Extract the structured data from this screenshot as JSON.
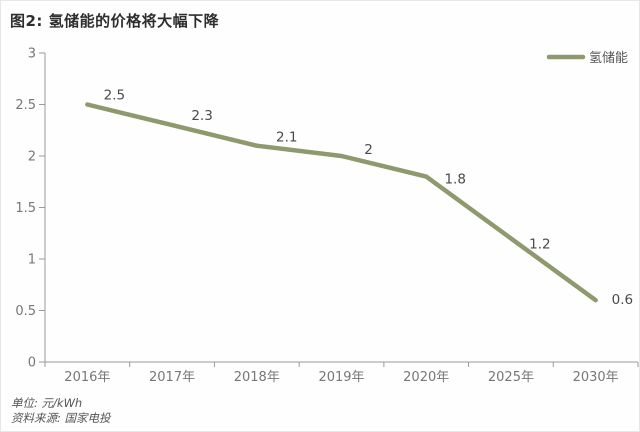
{
  "title": "图2: 氢储能的价格将大幅下降",
  "legend": {
    "label": "氢储能"
  },
  "footer": {
    "unit": "单位: 元/kWh",
    "source": "资料来源: 国家电投"
  },
  "colors": {
    "line": "#8e9a6d",
    "axis": "#9a9a9a",
    "axis_text": "#777777",
    "data_label_text": "#4a4a4a",
    "legend_text": "#555555"
  },
  "chart_data": {
    "type": "line",
    "title": "图2: 氢储能的价格将大幅下降",
    "categories": [
      "2016年",
      "2017年",
      "2018年",
      "2019年",
      "2020年",
      "2025年",
      "2030年"
    ],
    "series": [
      {
        "name": "氢储能",
        "values": [
          2.5,
          2.3,
          2.1,
          2,
          1.8,
          1.2,
          0.6
        ]
      }
    ],
    "data_labels": [
      "2.5",
      "2.3",
      "2.1",
      "2",
      "1.8",
      "1.2",
      "0.6"
    ],
    "xlabel": "",
    "ylabel": "",
    "ylim": [
      0,
      3
    ],
    "ytick_step": 0.5,
    "ytick_labels": [
      "0",
      "0.5",
      "1",
      "1.5",
      "2",
      "2.5",
      "3"
    ],
    "grid": false,
    "legend_position": "top-right",
    "unit": "元/kWh",
    "source": "国家电投"
  }
}
